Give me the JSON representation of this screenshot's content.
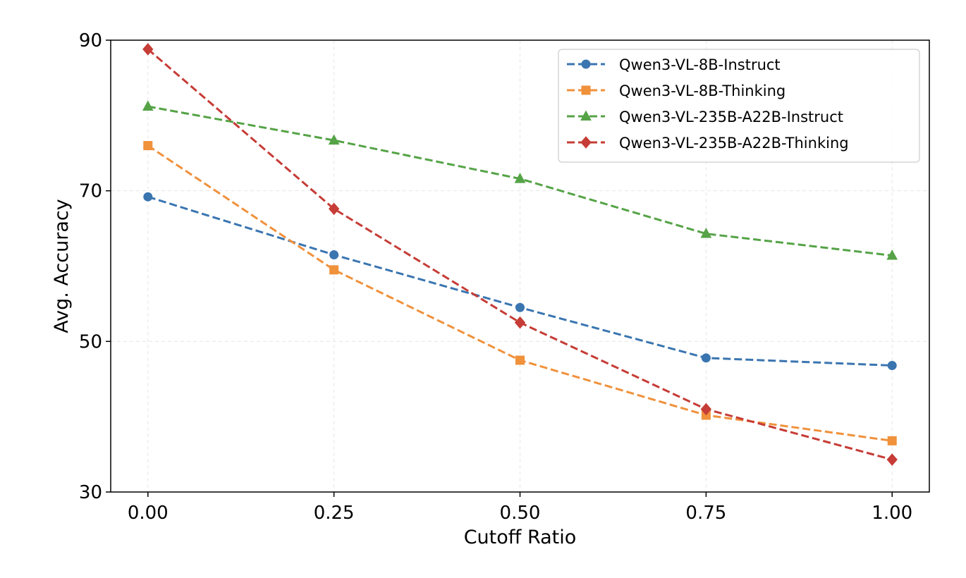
{
  "chart_data": {
    "type": "line",
    "title": "",
    "xlabel": "Cutoff Ratio",
    "ylabel": "Avg. Accuracy",
    "x": [
      0.0,
      0.25,
      0.5,
      0.75,
      1.0
    ],
    "xticks": [
      "0.00",
      "0.25",
      "0.50",
      "0.75",
      "1.00"
    ],
    "yticks": [
      "30",
      "50",
      "70",
      "90"
    ],
    "xlim": [
      -0.05,
      1.05
    ],
    "ylim": [
      30,
      90
    ],
    "grid": true,
    "legend_position": "top-right",
    "series": [
      {
        "name": "Qwen3-VL-8B-Instruct",
        "color": "#3a75b0",
        "marker": "circle",
        "line_style": "dashed",
        "values": [
          69.2,
          61.5,
          54.5,
          47.8,
          46.8
        ]
      },
      {
        "name": "Qwen3-VL-8B-Thinking",
        "color": "#f0913b",
        "marker": "square",
        "line_style": "dashed",
        "values": [
          76.0,
          59.5,
          47.5,
          40.2,
          36.8
        ]
      },
      {
        "name": "Qwen3-VL-235B-A22B-Instruct",
        "color": "#55a346",
        "marker": "triangle",
        "line_style": "dashed",
        "values": [
          81.2,
          76.7,
          71.6,
          64.3,
          61.4
        ]
      },
      {
        "name": "Qwen3-VL-235B-A22B-Thinking",
        "color": "#c63c36",
        "marker": "diamond",
        "line_style": "dashed",
        "values": [
          88.8,
          67.6,
          52.5,
          41.0,
          34.3
        ]
      }
    ]
  }
}
